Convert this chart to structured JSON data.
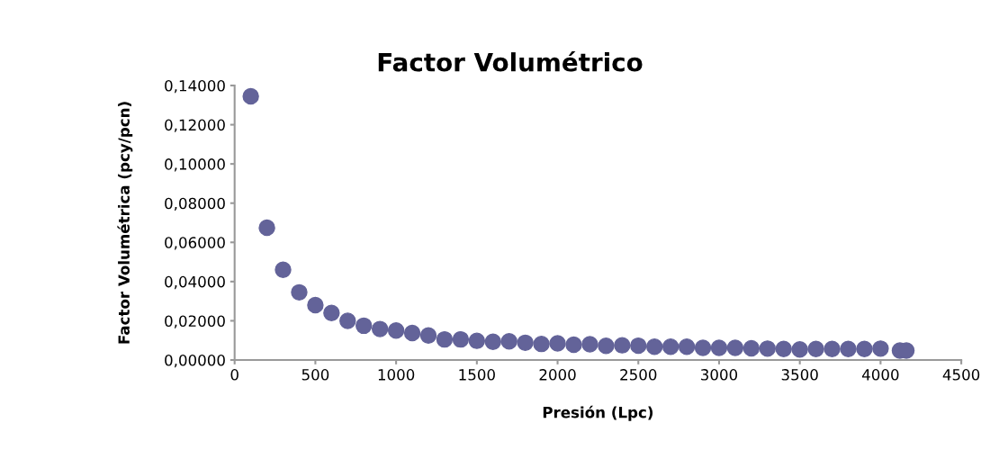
{
  "chart_data": {
    "type": "scatter",
    "title": "Factor Volumétrico",
    "xlabel": "Presión (Lpc)",
    "ylabel": "Factor Volumétrica (pcy/pcn)",
    "x": [
      100,
      200,
      300,
      400,
      500,
      600,
      700,
      800,
      900,
      1000,
      1100,
      1200,
      1300,
      1400,
      1500,
      1600,
      1700,
      1800,
      1900,
      2000,
      2100,
      2200,
      2300,
      2400,
      2500,
      2600,
      2700,
      2800,
      2900,
      3000,
      3100,
      3200,
      3300,
      3400,
      3500,
      3600,
      3700,
      3800,
      3900,
      4000,
      4120,
      4160
    ],
    "series": [
      {
        "color": "#636399",
        "values": [
          0.1345,
          0.0675,
          0.046,
          0.0345,
          0.028,
          0.024,
          0.02,
          0.0175,
          0.0158,
          0.015,
          0.0138,
          0.0125,
          0.0105,
          0.0105,
          0.0098,
          0.0093,
          0.0095,
          0.0088,
          0.0082,
          0.0085,
          0.0078,
          0.008,
          0.0072,
          0.0075,
          0.0073,
          0.0068,
          0.0068,
          0.0068,
          0.0062,
          0.0062,
          0.0062,
          0.006,
          0.0058,
          0.0056,
          0.0054,
          0.0056,
          0.0056,
          0.0056,
          0.0056,
          0.0058,
          0.0048,
          0.0048
        ]
      }
    ],
    "marker": "circle",
    "xlim": [
      0,
      4500
    ],
    "xticks": [
      0,
      500,
      1000,
      1500,
      2000,
      2500,
      3000,
      3500,
      4000,
      4500
    ],
    "ylim": [
      0,
      0.14
    ],
    "yticks": [
      {
        "value": 0,
        "label": "0,00000"
      },
      {
        "value": 0.02,
        "label": "0,02000"
      },
      {
        "value": 0.04,
        "label": "0,04000"
      },
      {
        "value": 0.06,
        "label": "0,06000"
      },
      {
        "value": 0.08,
        "label": "0,08000"
      },
      {
        "value": 0.1,
        "label": "0,10000"
      },
      {
        "value": 0.12,
        "label": "0,12000"
      },
      {
        "value": 0.14,
        "label": "0,14000"
      }
    ],
    "grid": false
  }
}
